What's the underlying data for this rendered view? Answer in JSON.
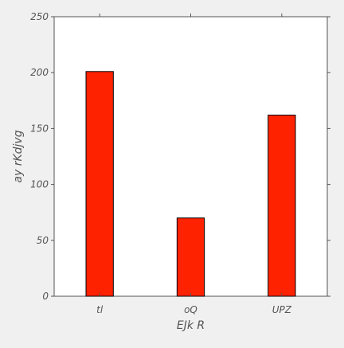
{
  "chart_data": {
    "type": "bar",
    "categories": [
      "tl",
      "oQ",
      "UPZ"
    ],
    "values": [
      201,
      70,
      162
    ],
    "title": "",
    "xlabel": "EJk  R",
    "ylabel": "ay rKdjvg",
    "ylim": [
      0,
      250
    ],
    "yticks": [
      0,
      50,
      100,
      150,
      200,
      250
    ],
    "grid": false,
    "legend": "none",
    "colors": {
      "bar": "#ff2200",
      "bar_edge": "#000000",
      "background": "#f0f0f0",
      "plot_area": "#ffffff",
      "axis": "#555555"
    }
  }
}
